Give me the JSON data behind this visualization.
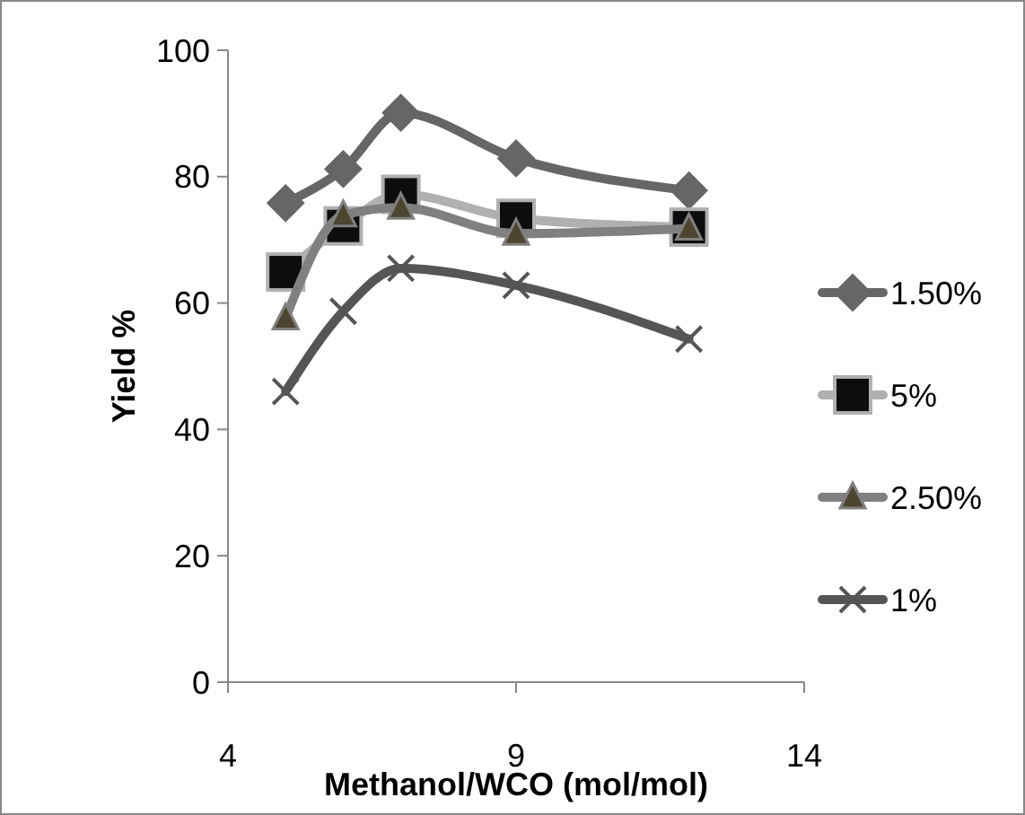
{
  "chart_data": {
    "type": "line",
    "xlabel": "Methanol/WCO (mol/mol)",
    "ylabel": "Yield %",
    "x": [
      5,
      6,
      7,
      9,
      12
    ],
    "xlim": [
      4,
      14
    ],
    "xticks": [
      4,
      9,
      14
    ],
    "ylim": [
      0,
      100
    ],
    "yticks": [
      0,
      20,
      40,
      60,
      80,
      100
    ],
    "grid": false,
    "legend": "right",
    "series": [
      {
        "name": "1.50%",
        "color": "#666666",
        "marker": "diamond",
        "values": [
          75.8,
          81.2,
          90.1,
          82.9,
          77.8
        ]
      },
      {
        "name": "5%",
        "color": "#b0b0b0",
        "marker": "square",
        "values": [
          64.9,
          72.2,
          77.2,
          73.4,
          72
        ]
      },
      {
        "name": "2.50%",
        "color": "#808080",
        "marker": "triangle",
        "values": [
          57.6,
          73.9,
          75.1,
          71,
          71.8
        ]
      },
      {
        "name": "1%",
        "color": "#555555",
        "marker": "cross",
        "values": [
          46,
          58.7,
          65.5,
          62.8,
          54.3
        ]
      }
    ]
  }
}
